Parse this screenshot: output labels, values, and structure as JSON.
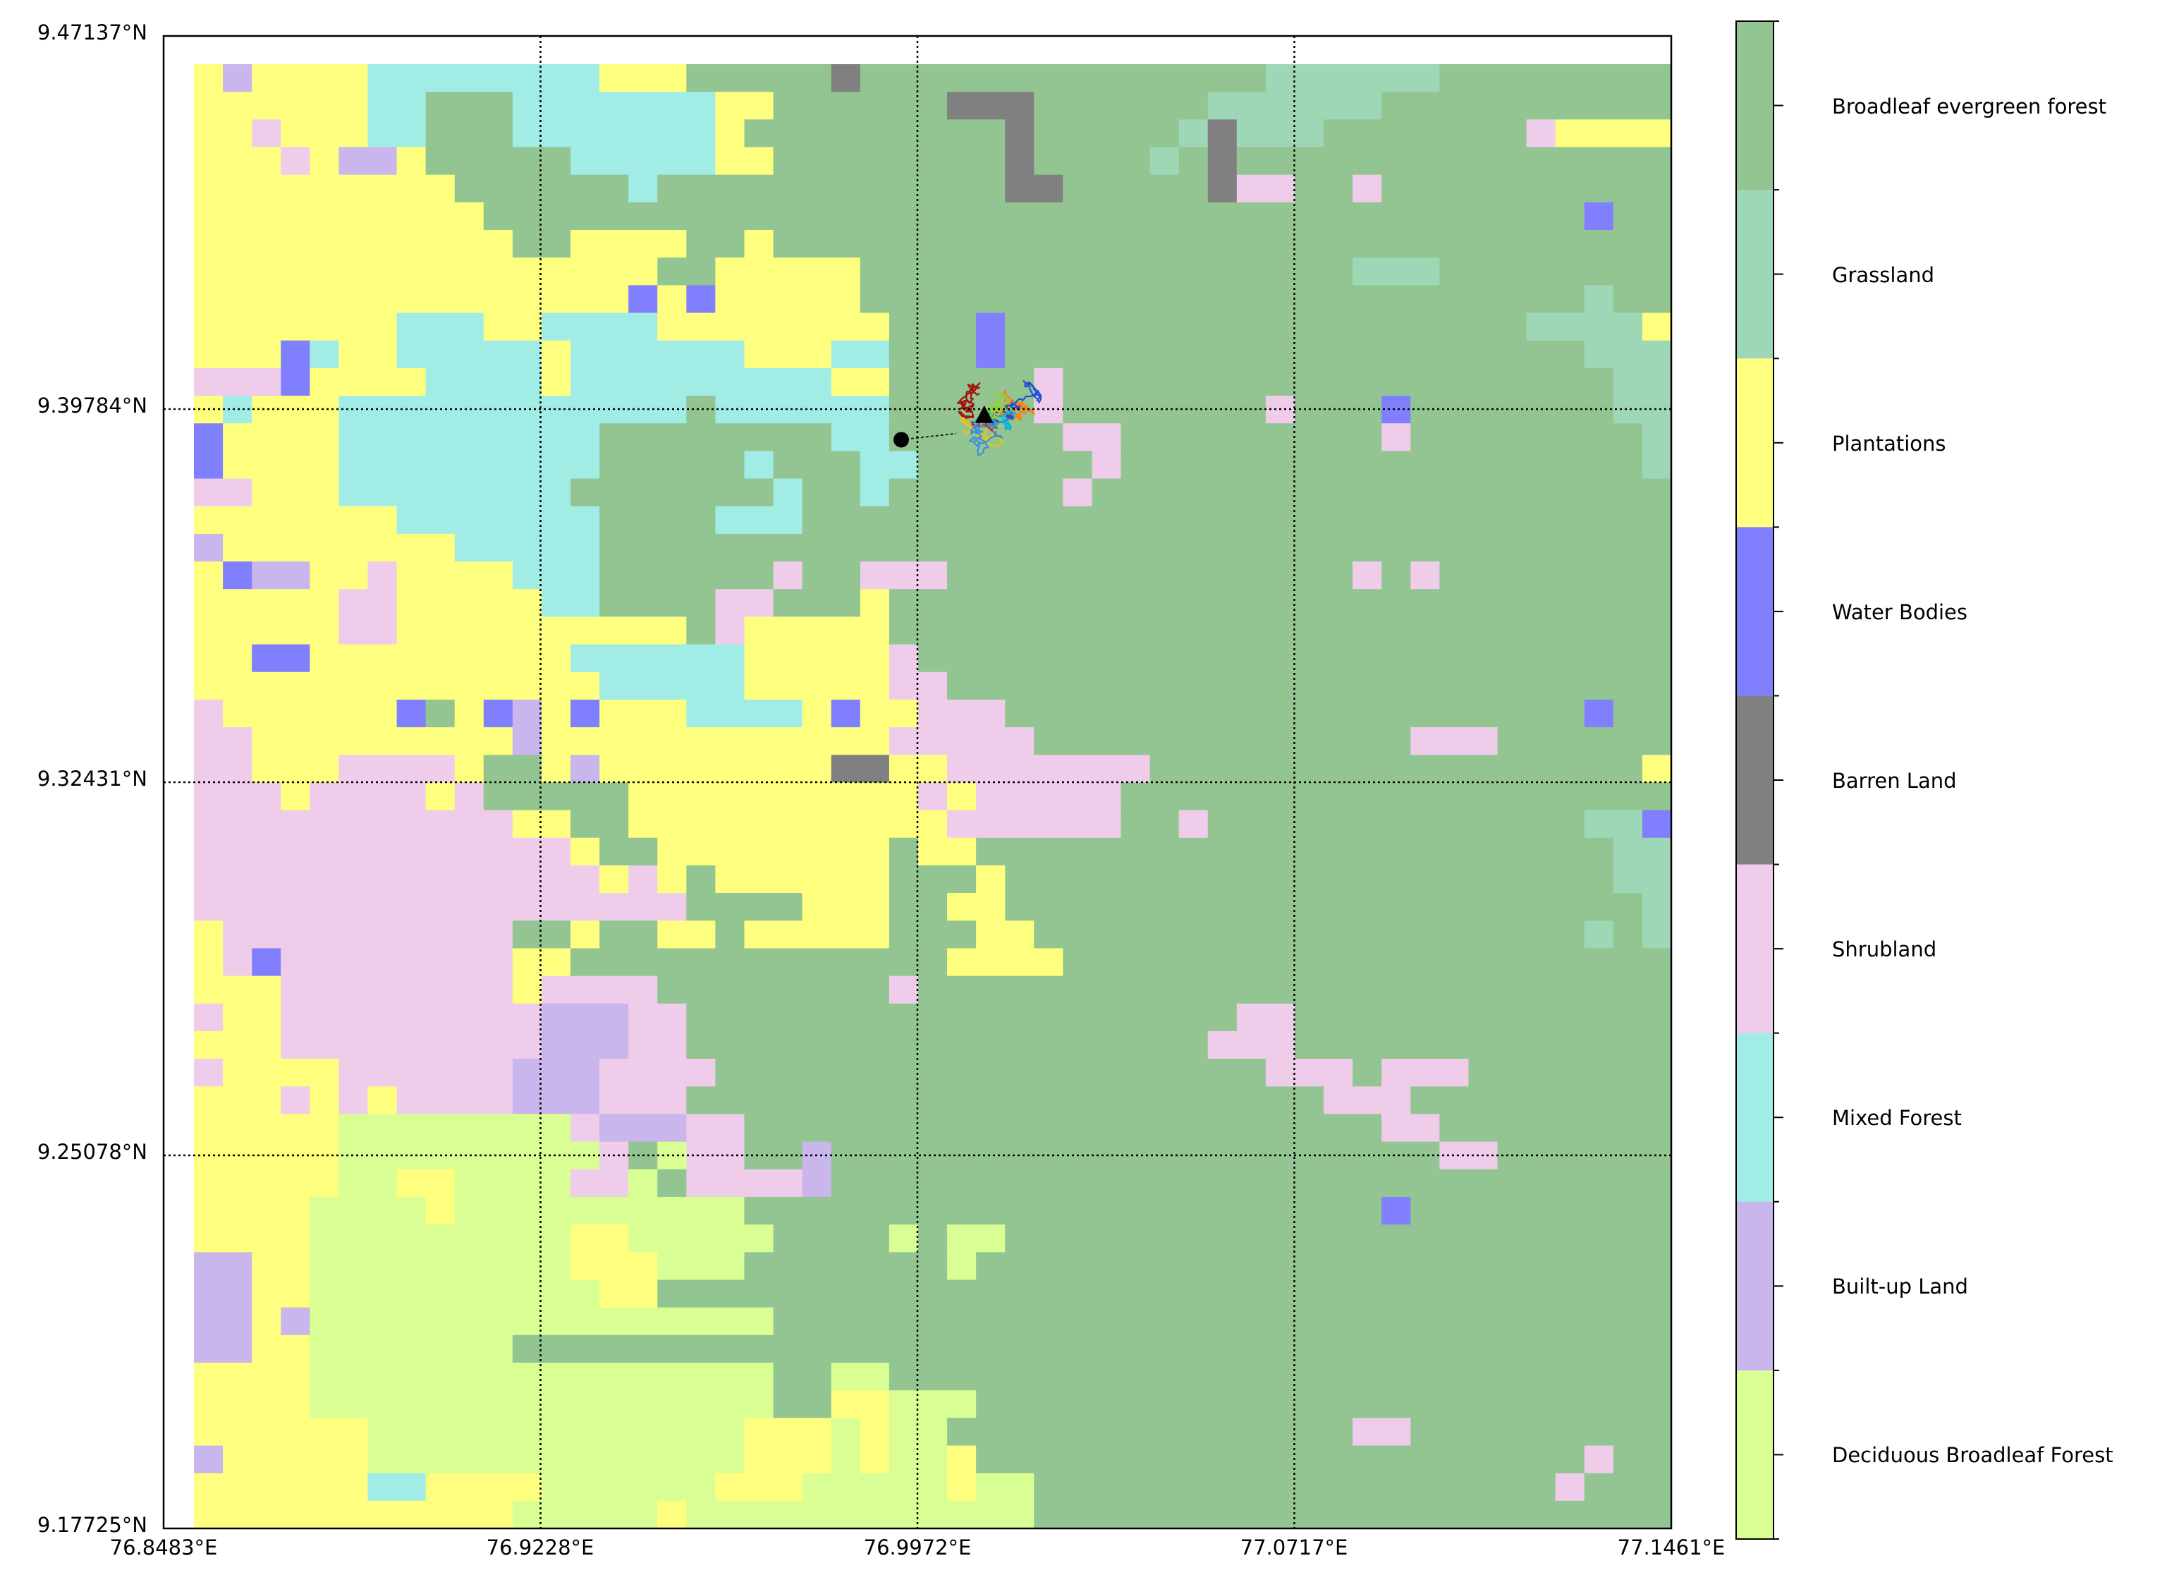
{
  "map": {
    "lat_labels": [
      "9.47137°N",
      "9.39784°N",
      "9.32431°N",
      "9.25078°N",
      "9.17725°N"
    ],
    "lon_labels": [
      "76.8483°E",
      "76.9228°E",
      "76.9972°E",
      "77.0717°E",
      "77.1461°E"
    ],
    "lat_range": [
      9.17725,
      9.47137
    ],
    "lon_range": [
      76.8483,
      77.1461
    ],
    "grid_style": "dotted",
    "markers": [
      {
        "name": "start-point",
        "shape": "circle",
        "color": "#000000",
        "lon": 76.994,
        "lat": 9.3918
      },
      {
        "name": "end-point",
        "shape": "triangle",
        "color": "#000000",
        "lon": 77.0104,
        "lat": 9.3965
      }
    ],
    "trajectory_colors": [
      "#d62020",
      "#ff7f0e",
      "#1f4fd6",
      "#17b3d6",
      "#8fd13c",
      "#e8c21a",
      "#a3140f",
      "#3a8fdc"
    ]
  },
  "legend": {
    "colors": {
      "deciduous": "#d9ff94",
      "built_up": "#c8b6ec",
      "mixed_forest": "#a1ede6",
      "shrubland": "#efcdea",
      "barren": "#808080",
      "water": "#8080ff",
      "plantations": "#ffff7f",
      "grassland": "#9ed7b5",
      "broadleaf": "#92c591"
    },
    "items": [
      {
        "key": "B",
        "label": "Broadleaf evergreen forest"
      },
      {
        "key": "G",
        "label": "Grassland"
      },
      {
        "key": "P",
        "label": "Plantations"
      },
      {
        "key": "W",
        "label": "Water Bodies"
      },
      {
        "key": "R",
        "label": "Barren Land"
      },
      {
        "key": "S",
        "label": "Shrubland"
      },
      {
        "key": "M",
        "label": "Mixed Forest"
      },
      {
        "key": "U",
        "label": "Built-up Land"
      },
      {
        "key": "D",
        "label": "Deciduous Broadleaf Forest"
      }
    ]
  },
  "chart_data": {
    "type": "heatmap",
    "categories": [
      "Deciduous Broadleaf Forest",
      "Built-up Land",
      "Mixed Forest",
      "Shrubland",
      "Barren Land",
      "Water Bodies",
      "Plantations",
      "Grassland",
      "Broadleaf evergreen forest"
    ],
    "grid_codes": {
      "D": "Deciduous Broadleaf Forest",
      "U": "Built-up Land",
      "M": "Mixed Forest",
      "S": "Shrubland",
      "R": "Barren Land",
      "W": "Water Bodies",
      "P": "Plantations",
      "G": "Grassland",
      "B": "Broadleaf evergreen forest"
    },
    "grid_rows": [
      "PUPPPPMMMMMMMMPPPBBBBBRBBBBBBBBBBBBBBGGGGGGBBBBBBBB",
      "PPPPPPMMBBBMMMMMMMPPBBBBBBRRRBBBBBBGGGGGGBBBBBBBBBB",
      "PPSPPPMMBBBMMMMMMMPBBBBBBBBBRBBBBBGRGGGBBBBBBBSPPPP",
      "PPPSPUUPBBBBBMMMMMPPBBBBBBBBRBBBBGBRBBBBBBBBBBBBBBB",
      "PPPPPPPPPBBBBBBMBBBBBBBBBBBBRRBBBBBRSSBBSBBBBBBBBBB",
      "PPPPPPPPPPBBBBBBBBBBBBBBBBBBBBBBBBBBBBBBBBBBBBBBWBB",
      "PPPPPPPPPPPBBPPPPBBPBBBBBBBBBBBBBBBBBBBBBBBBBBBBBBB",
      "PPPPPPPPPPPPPPPPBBPPPPPBBBBBBBBBBBBBBBBBGGGBBBBBBBB",
      "PPPPPPPPPPPPPPPWPWPPPPPBBBBBBBBBBBBBBBBBBBBBBBBBGBB",
      "PPPPPPPMMMPPMMMMPPPPPPPPBBBWBBBBBBBBBBBBBBBBBBGGGGP",
      "PPPWMPPMMMMMPMMMMMMPPPMMBBBWBBBBBBBBBBBBBBBBBBBBGGG",
      "SSSWPPPPMMMMPMMMMMMMMMPPBBBBBSBBBBBBBBBBBBBBBBBBBGG",
      "PMPPPMMMMMMMMMMMMBMMMMMMBBBBBSBBBBBBBSBBBWBBBBBBBGG",
      "WPPPPMMMMMMMMMBBBBBBBBMMBBBBBBSSBBBBBBBBBSBBBBBBBBG",
      "WPPPPMMMMMMMMMBBBBBMBBBMMBBBBBBSBBBBBBBBBBBBBBBBBBG",
      "SSPPPMMMMMMMMBBBBBBBMBBMBBBBBBSBBBBBBBBBBBBBBBBBBBB",
      "PPPPPPPMMMMMMMBBBBMMMBBBBBBBBBBBBBBBBBBBBBBBBBBBBBB",
      "UPPPPPPPPMMMMMBBBBBBBBBBBBBBBBBBBBBBBBBBBBBBBBBBBBB",
      "PWUUPPSPPPPMMMBBBBBBSBBSSSBBBBBBBBBBBBBBSBSBBBBBBBB",
      "PPPPPSSPPPPPMMBBBBSSBBBPBBBBBBBBBBBBBBBBBBBBBBBBBBB",
      "PPPPPSSPPPPPPPPPPBSPPPPPBBBBBBBBBBBBBBBBBBBBBBBBBBB",
      "PPWWPPPPPPPPPMMMMMMPPPPPSBBBBBBBBBBBBBBBBBBBBBBBBBB",
      "PPPPPPPPPPPPPPMMMMMPPPPPSSBBBBBBBBBBBBBBBBBBBBBBBBB",
      "SPPPPPPWBPWUPWPPPMMMMPWPPSSSBBBBBBBBBBBBBBBBBBBBWBB",
      "SSPPPPPPPPPUPPPPPPPPPPPPSSSSSBBBBBBBBBBBBBSSSBBBBBB",
      "SSPPPSSSSPBBPUPPPPPPPPRRPPSSSSSSSBBBBBBBBBBBBBBBBBP",
      "SSSPSSSSPSBBBBBPPPPPPPPPPSPSSSSSBBBBBBBBBBBBBBBBBBB",
      "SSSSSSSSSSSPPBBPPPPPPPPPPPSSSSSSBBSBBBBBBBBBBBBBGGW",
      "SSSSSSSSSSSSSPBBPPPPPPPPBPPBBBBBBBBBBBBBBBBBBBBBBGG",
      "SSSSSSSSSSSSSSPSPBPPPPPPBBBPBBBBBBBBBBBBBBBBBBBBBGG",
      "SSSSSSSSSSSSSSSSSBBBBPPPBBPPBBBBBBBBBBBBBBBBBBBBBBG",
      "PSSSSSSSSSSBBPBBPPBPPPPPBBBPPBBBBBBBBBBBBBBBBBBBGBG",
      "PSWSSSSSSSSPPBBBBBBBBBBBBBPPPPBBBBBBBBBBBBBBBBBBBBB",
      "PPPSSSSSSSSPSSSSBBBBBBBBSBBBBBBBBBBBBBBBBBBBBBBBBBB",
      "SPPSSSSSSSSSUUUSSBBBBBBBBBBBBBBBBBBBSSBBBBBBBBBBBBB",
      "PPPSSSSSSSSSUUUSSBBBBBBBBBBBBBBBBBBSSSBBBBBBBBBBBBB",
      "SPPPPSSSSSSUUUSSSSBBBBBBBBBBBBBBBBBBBSSSBSSSBBBBBBB",
      "PPPSPSPSSSSUUUSSSBBBBBBBBBBBBBBBBBBBBBBSSSBBBBBBBBB",
      "PPPPPDDDDDDDDSUUUSSBBBBBBBBBBBBBBBBBBBBBBSSBBBBBBBB",
      "PPPPPDDDDDDDDDSBDSSBBUBBBBBBBBBBBBBBBBBBBBBSSBBBBBB",
      "PPPPPDDPPDDDDSSDBSSSSUBBBBBBBBBBBBBBBBBBBBBBBBBBBBB",
      "PPPPDDDDPDDDDDDDDDDBBBBBBBBBBBBBBBBBBBBBBWBBBBBBBBB",
      "PPPPDDDDDDDDDPPDDDDDBBBBDBDDBBBBBBBBBBBBBBBBBBBBBBB",
      "UUPPDDDDDDDDDPPPDDDBBBBBBBDBBBBBBBBBBBBBBBBBBBBBBBB",
      "UUPPDDDDDDDDDDPPBBBBBBBBBBBBBBBBBBBBBBBBBBBBBBBBBBB",
      "UUPUDDDDDDDDDDDDDDDDBBBBBBBBBBBBBBBBBBBBBBBBBBBBBBB",
      "UUPPDDDDDDDBBBBBBBBBBBBBBBBBBBBBBBBBBBBBBBBBBBBBBBB",
      "PPPPDDDDDDDDDDDDDDDDBBDDBBBBBBBBBBBBBBBBBBBBBBBBBBB",
      "PPPPDDDDDDDDDDDDDDDDBBPPDDDBBBBBBBBBBBBBBBBBBBBBBBB",
      "PPPPPPDDDDDDDDDDDDDPPPDPDDBBBBBBBBBBBBBBSSBBBBBBBBB",
      "UPPPPPDDDDDDDDDDDDDPPPDPDDPBBBBBBBBBBBBBBBBBBBBBSBB",
      "PPPPPPMMPPPPDDDDDDPPPDDDDDPDDBBBBBBBBBBBBBBBBBBSBBB",
      "PPPPPPPPPPPDDDDDPDDDDDDDDDDDDBBBBBBBBBBBBBBBBBBBBBB"
    ],
    "xlim": [
      76.8483,
      77.1461
    ],
    "ylim": [
      9.17725,
      9.47137
    ],
    "x_ticks": [
      "76.8483°E",
      "76.9228°E",
      "76.9972°E",
      "77.0717°E",
      "77.1461°E"
    ],
    "y_ticks": [
      "9.47137°N",
      "9.39784°N",
      "9.32431°N",
      "9.25078°N",
      "9.17725°N"
    ],
    "grid": true,
    "legend_position": "right colorbar"
  }
}
